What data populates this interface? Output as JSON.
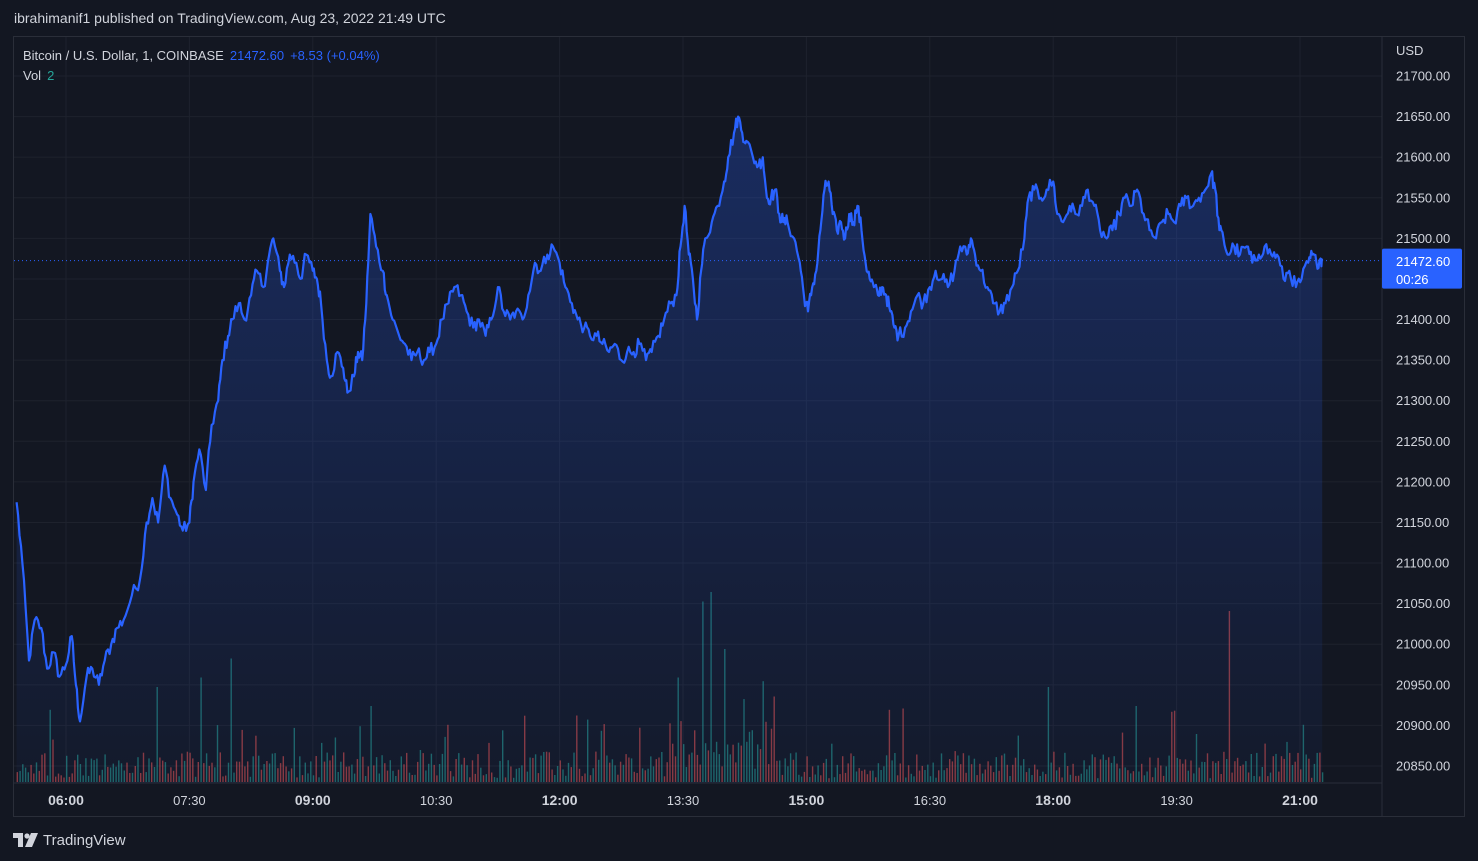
{
  "header": {
    "published_line": "ibrahimanif1 published on TradingView.com, Aug 23, 2022 21:49 UTC"
  },
  "legend": {
    "symbol": "Bitcoin / U.S. Dollar, 1, COINBASE",
    "last_price": "21472.60",
    "change": "+8.53 (+0.04%)",
    "volume_label": "Vol",
    "volume_value": "2"
  },
  "price_tag": {
    "price": "21472.60",
    "countdown": "00:26"
  },
  "footer": {
    "brand": "TradingView"
  },
  "colors": {
    "background": "#131722",
    "line": "#2962ff",
    "volume_up": "#26a69a",
    "volume_down": "#ef5350",
    "grid": "#1e222d"
  },
  "chart_data": {
    "type": "area",
    "currency_label": "USD",
    "y_ticks": [
      "21700.00",
      "21650.00",
      "21600.00",
      "21550.00",
      "21500.00",
      "21450.00",
      "21400.00",
      "21350.00",
      "21300.00",
      "21250.00",
      "21200.00",
      "21150.00",
      "21100.00",
      "21050.00",
      "21000.00",
      "20950.00",
      "20900.00",
      "20850.00"
    ],
    "y_tick_values": [
      21700,
      21650,
      21600,
      21550,
      21500,
      21450,
      21400,
      21350,
      21300,
      21250,
      21200,
      21150,
      21100,
      21050,
      21000,
      20950,
      20900,
      20850
    ],
    "ylim": [
      20830,
      21720
    ],
    "x_ticks": [
      {
        "label": "06:00",
        "hour": 6.0,
        "bold": true
      },
      {
        "label": "07:30",
        "hour": 7.5,
        "bold": false
      },
      {
        "label": "09:00",
        "hour": 9.0,
        "bold": true
      },
      {
        "label": "10:30",
        "hour": 10.5,
        "bold": false
      },
      {
        "label": "12:00",
        "hour": 12.0,
        "bold": true
      },
      {
        "label": "13:30",
        "hour": 13.5,
        "bold": false
      },
      {
        "label": "15:00",
        "hour": 15.0,
        "bold": true
      },
      {
        "label": "16:30",
        "hour": 16.5,
        "bold": false
      },
      {
        "label": "18:00",
        "hour": 18.0,
        "bold": true
      },
      {
        "label": "19:30",
        "hour": 19.5,
        "bold": false
      },
      {
        "label": "21:00",
        "hour": 21.0,
        "bold": true
      }
    ],
    "xlim_hours": [
      5.38,
      22.18
    ],
    "series": [
      {
        "points": [
          [
            5.4,
            21175
          ],
          [
            5.47,
            21100
          ],
          [
            5.55,
            20980
          ],
          [
            5.62,
            21030
          ],
          [
            5.7,
            21020
          ],
          [
            5.77,
            20970
          ],
          [
            5.85,
            20990
          ],
          [
            5.92,
            20960
          ],
          [
            6.0,
            20975
          ],
          [
            6.07,
            21010
          ],
          [
            6.12,
            20950
          ],
          [
            6.17,
            20905
          ],
          [
            6.25,
            20960
          ],
          [
            6.32,
            20970
          ],
          [
            6.4,
            20950
          ],
          [
            6.47,
            20980
          ],
          [
            6.55,
            21000
          ],
          [
            6.62,
            21020
          ],
          [
            6.7,
            21030
          ],
          [
            6.8,
            21060
          ],
          [
            6.9,
            21080
          ],
          [
            6.98,
            21150
          ],
          [
            7.05,
            21180
          ],
          [
            7.12,
            21150
          ],
          [
            7.2,
            21220
          ],
          [
            7.27,
            21180
          ],
          [
            7.35,
            21160
          ],
          [
            7.42,
            21140
          ],
          [
            7.5,
            21150
          ],
          [
            7.55,
            21200
          ],
          [
            7.62,
            21240
          ],
          [
            7.7,
            21190
          ],
          [
            7.77,
            21270
          ],
          [
            7.85,
            21300
          ],
          [
            7.9,
            21350
          ],
          [
            7.97,
            21380
          ],
          [
            8.02,
            21400
          ],
          [
            8.1,
            21420
          ],
          [
            8.17,
            21400
          ],
          [
            8.25,
            21430
          ],
          [
            8.32,
            21460
          ],
          [
            8.4,
            21440
          ],
          [
            8.47,
            21480
          ],
          [
            8.52,
            21500
          ],
          [
            8.6,
            21460
          ],
          [
            8.65,
            21440
          ],
          [
            8.72,
            21480
          ],
          [
            8.8,
            21470
          ],
          [
            8.85,
            21450
          ],
          [
            8.92,
            21480
          ],
          [
            9.0,
            21460
          ],
          [
            9.05,
            21450
          ],
          [
            9.1,
            21420
          ],
          [
            9.17,
            21350
          ],
          [
            9.22,
            21330
          ],
          [
            9.3,
            21360
          ],
          [
            9.37,
            21340
          ],
          [
            9.42,
            21310
          ],
          [
            9.5,
            21330
          ],
          [
            9.55,
            21360
          ],
          [
            9.6,
            21350
          ],
          [
            9.65,
            21420
          ],
          [
            9.7,
            21530
          ],
          [
            9.77,
            21490
          ],
          [
            9.85,
            21460
          ],
          [
            9.9,
            21430
          ],
          [
            9.97,
            21400
          ],
          [
            10.05,
            21380
          ],
          [
            10.12,
            21370
          ],
          [
            10.2,
            21350
          ],
          [
            10.27,
            21360
          ],
          [
            10.35,
            21350
          ],
          [
            10.42,
            21360
          ],
          [
            10.5,
            21370
          ],
          [
            10.57,
            21400
          ],
          [
            10.65,
            21420
          ],
          [
            10.72,
            21440
          ],
          [
            10.8,
            21430
          ],
          [
            10.87,
            21410
          ],
          [
            10.95,
            21390
          ],
          [
            11.02,
            21400
          ],
          [
            11.1,
            21380
          ],
          [
            11.17,
            21400
          ],
          [
            11.25,
            21440
          ],
          [
            11.32,
            21410
          ],
          [
            11.4,
            21400
          ],
          [
            11.47,
            21410
          ],
          [
            11.55,
            21400
          ],
          [
            11.62,
            21430
          ],
          [
            11.7,
            21470
          ],
          [
            11.77,
            21460
          ],
          [
            11.85,
            21480
          ],
          [
            11.92,
            21490
          ],
          [
            12.0,
            21470
          ],
          [
            12.07,
            21440
          ],
          [
            12.15,
            21420
          ],
          [
            12.22,
            21400
          ],
          [
            12.3,
            21390
          ],
          [
            12.37,
            21380
          ],
          [
            12.45,
            21380
          ],
          [
            12.52,
            21370
          ],
          [
            12.6,
            21360
          ],
          [
            12.67,
            21370
          ],
          [
            12.75,
            21350
          ],
          [
            12.82,
            21360
          ],
          [
            12.9,
            21360
          ],
          [
            12.97,
            21370
          ],
          [
            13.05,
            21350
          ],
          [
            13.12,
            21360
          ],
          [
            13.2,
            21380
          ],
          [
            13.27,
            21400
          ],
          [
            13.35,
            21420
          ],
          [
            13.42,
            21430
          ],
          [
            13.47,
            21490
          ],
          [
            13.52,
            21540
          ],
          [
            13.57,
            21480
          ],
          [
            13.62,
            21450
          ],
          [
            13.67,
            21400
          ],
          [
            13.72,
            21460
          ],
          [
            13.77,
            21500
          ],
          [
            13.85,
            21520
          ],
          [
            13.92,
            21540
          ],
          [
            14.0,
            21570
          ],
          [
            14.05,
            21600
          ],
          [
            14.12,
            21630
          ],
          [
            14.17,
            21650
          ],
          [
            14.22,
            21630
          ],
          [
            14.27,
            21620
          ],
          [
            14.35,
            21600
          ],
          [
            14.42,
            21590
          ],
          [
            14.47,
            21600
          ],
          [
            14.52,
            21550
          ],
          [
            14.57,
            21550
          ],
          [
            14.62,
            21560
          ],
          [
            14.67,
            21530
          ],
          [
            14.72,
            21520
          ],
          [
            14.77,
            21520
          ],
          [
            14.85,
            21500
          ],
          [
            14.92,
            21470
          ],
          [
            14.97,
            21430
          ],
          [
            15.02,
            21410
          ],
          [
            15.07,
            21440
          ],
          [
            15.12,
            21460
          ],
          [
            15.17,
            21510
          ],
          [
            15.22,
            21560
          ],
          [
            15.27,
            21570
          ],
          [
            15.32,
            21530
          ],
          [
            15.37,
            21510
          ],
          [
            15.42,
            21520
          ],
          [
            15.47,
            21500
          ],
          [
            15.52,
            21530
          ],
          [
            15.57,
            21520
          ],
          [
            15.62,
            21540
          ],
          [
            15.67,
            21510
          ],
          [
            15.72,
            21470
          ],
          [
            15.77,
            21450
          ],
          [
            15.82,
            21440
          ],
          [
            15.87,
            21430
          ],
          [
            15.92,
            21440
          ],
          [
            15.97,
            21430
          ],
          [
            16.02,
            21410
          ],
          [
            16.07,
            21390
          ],
          [
            16.12,
            21380
          ],
          [
            16.2,
            21390
          ],
          [
            16.27,
            21410
          ],
          [
            16.35,
            21430
          ],
          [
            16.42,
            21420
          ],
          [
            16.5,
            21440
          ],
          [
            16.57,
            21460
          ],
          [
            16.65,
            21450
          ],
          [
            16.72,
            21440
          ],
          [
            16.8,
            21460
          ],
          [
            16.87,
            21490
          ],
          [
            16.95,
            21480
          ],
          [
            17.0,
            21500
          ],
          [
            17.05,
            21480
          ],
          [
            17.12,
            21460
          ],
          [
            17.2,
            21440
          ],
          [
            17.27,
            21420
          ],
          [
            17.35,
            21410
          ],
          [
            17.42,
            21420
          ],
          [
            17.5,
            21440
          ],
          [
            17.57,
            21460
          ],
          [
            17.65,
            21500
          ],
          [
            17.7,
            21550
          ],
          [
            17.77,
            21560
          ],
          [
            17.85,
            21550
          ],
          [
            17.92,
            21560
          ],
          [
            18.0,
            21570
          ],
          [
            18.05,
            21530
          ],
          [
            18.12,
            21520
          ],
          [
            18.2,
            21540
          ],
          [
            18.27,
            21530
          ],
          [
            18.35,
            21540
          ],
          [
            18.42,
            21560
          ],
          [
            18.5,
            21540
          ],
          [
            18.57,
            21510
          ],
          [
            18.65,
            21500
          ],
          [
            18.72,
            21510
          ],
          [
            18.8,
            21530
          ],
          [
            18.87,
            21550
          ],
          [
            18.95,
            21540
          ],
          [
            19.02,
            21560
          ],
          [
            19.1,
            21530
          ],
          [
            19.17,
            21510
          ],
          [
            19.25,
            21500
          ],
          [
            19.32,
            21520
          ],
          [
            19.4,
            21530
          ],
          [
            19.47,
            21520
          ],
          [
            19.55,
            21540
          ],
          [
            19.62,
            21550
          ],
          [
            19.7,
            21540
          ],
          [
            19.77,
            21550
          ],
          [
            19.85,
            21560
          ],
          [
            19.92,
            21580
          ],
          [
            19.97,
            21560
          ],
          [
            20.02,
            21510
          ],
          [
            20.07,
            21500
          ],
          [
            20.12,
            21480
          ],
          [
            20.2,
            21490
          ],
          [
            20.27,
            21480
          ],
          [
            20.35,
            21490
          ],
          [
            20.42,
            21470
          ],
          [
            20.5,
            21480
          ],
          [
            20.57,
            21490
          ],
          [
            20.65,
            21480
          ],
          [
            20.72,
            21480
          ],
          [
            20.8,
            21450
          ],
          [
            20.87,
            21460
          ],
          [
            20.95,
            21440
          ],
          [
            21.02,
            21450
          ],
          [
            21.1,
            21470
          ],
          [
            21.15,
            21480
          ],
          [
            21.2,
            21470
          ],
          [
            21.25,
            21475
          ],
          [
            21.27,
            21472.6
          ]
        ]
      }
    ],
    "volumes": {
      "max_value": 100,
      "spikes": [
        [
          13.72,
          95
        ],
        [
          13.82,
          100
        ],
        [
          14.0,
          70
        ],
        [
          13.43,
          55
        ],
        [
          20.15,
          90
        ],
        [
          8.0,
          65
        ],
        [
          7.1,
          50
        ],
        [
          7.62,
          55
        ],
        [
          17.95,
          50
        ],
        [
          9.7,
          40
        ],
        [
          5.8,
          38
        ],
        [
          14.6,
          45
        ],
        [
          19.0,
          40
        ],
        [
          12.2,
          35
        ],
        [
          16.0,
          38
        ]
      ]
    }
  }
}
